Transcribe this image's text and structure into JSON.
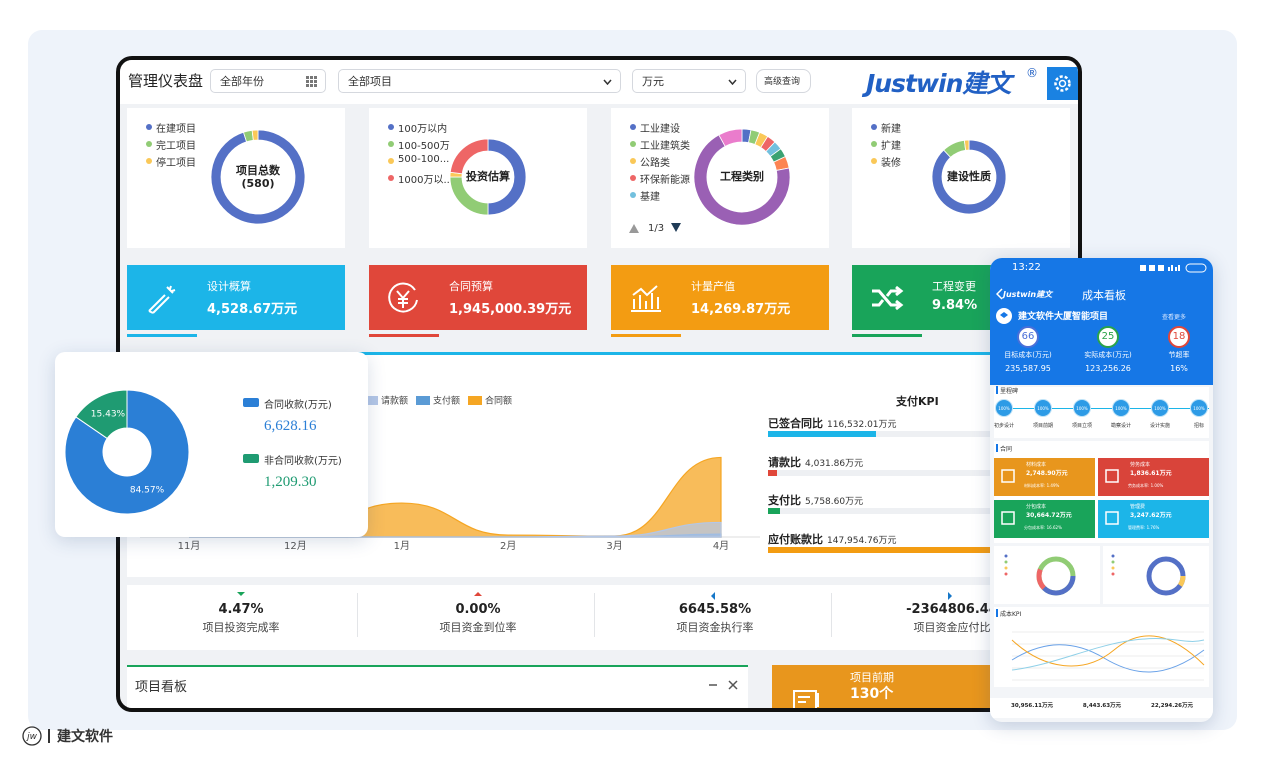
{
  "header": {
    "title": "管理仪表盘",
    "year_filter": "全部年份",
    "project_filter": "全部项目",
    "unit_filter": "万元",
    "advanced_query": "高级查询",
    "logo": "Justwin建文",
    "logo_mark": "®"
  },
  "summary_cards": [
    {
      "center_label": "项目总数",
      "center_value": "(580)",
      "legend": [
        "在建项目",
        "完工项目",
        "停工项目"
      ],
      "values": [
        95,
        3,
        2
      ],
      "colors": [
        "#5470c6",
        "#91cc75",
        "#fac858"
      ]
    },
    {
      "center_label": "投资估算",
      "legend": [
        "100万以内",
        "100-500万",
        "500-100...",
        "1000万以..."
      ],
      "values": [
        50,
        25,
        2,
        23
      ],
      "colors": [
        "#5470c6",
        "#91cc75",
        "#fac858",
        "#ee6666"
      ]
    },
    {
      "center_label": "工程类别",
      "legend": [
        "工业建设",
        "工业建筑类",
        "公路类",
        "环保新能源",
        "基建",
        null,
        null,
        null,
        null
      ],
      "values": [
        3,
        3,
        3,
        3,
        3,
        3,
        4,
        70,
        8
      ],
      "colors": [
        "#5470c6",
        "#91cc75",
        "#fac858",
        "#ee6666",
        "#73c0de",
        "#3ba272",
        "#fc8452",
        "#9a60b4",
        "#ea7ccc"
      ],
      "pager": "1/3"
    },
    {
      "center_label": "建设性质",
      "legend": [
        "新建",
        "扩建",
        "装修"
      ],
      "values": [
        88,
        10,
        2
      ],
      "colors": [
        "#5470c6",
        "#91cc75",
        "#fac858"
      ]
    }
  ],
  "kpi_tiles": [
    {
      "label": "设计概算",
      "value": "4,528.67万元",
      "color": "#1cb5e8"
    },
    {
      "label": "合同预算",
      "value": "1,945,000.39万元",
      "color": "#e0473a"
    },
    {
      "label": "计量产值",
      "value": "14,269.87万元",
      "color": "#f39c12"
    },
    {
      "label": "工程变更",
      "value": "9.84%",
      "color": "#19a45a"
    }
  ],
  "trend_chart": {
    "type": "area",
    "categories": [
      "11月",
      "12月",
      "1月",
      "2月",
      "3月",
      "4月"
    ],
    "series": [
      {
        "name": "请款额",
        "color": "#b4c7e7",
        "values": [
          0,
          0,
          0,
          0,
          1,
          15
        ]
      },
      {
        "name": "支付额",
        "color": "#5b9bd5",
        "values": [
          0,
          0,
          0,
          0,
          0,
          3
        ]
      },
      {
        "name": "合同额",
        "color": "#f5a623",
        "values": [
          0,
          6,
          35,
          2,
          1,
          82
        ]
      }
    ],
    "ylim": [
      0,
      100
    ]
  },
  "payment_kpi": {
    "title": "支付KPI",
    "items": [
      {
        "label": "已签合同比",
        "value": "116,532.01万元",
        "progress": 47,
        "color": "#1cb5e8"
      },
      {
        "label": "请款比",
        "value": "4,031.86万元",
        "progress": 4,
        "color": "#e0473a"
      },
      {
        "label": "支付比",
        "value": "5,758.60万元",
        "progress": 5,
        "color": "#19a45a"
      },
      {
        "label": "应付账款比",
        "value": "147,954.76万元",
        "progress": 100,
        "color": "#f39c12"
      }
    ]
  },
  "stats": [
    {
      "value": "4.47%",
      "label": "项目投资完成率",
      "arrow": "down",
      "color": "#19a45a"
    },
    {
      "value": "0.00%",
      "label": "项目资金到位率",
      "arrow": "up",
      "color": "#e0473a"
    },
    {
      "value": "6645.58%",
      "label": "项目资金执行率",
      "arrow": "left",
      "color": "#1677c8"
    },
    {
      "value": "-2364806.44",
      "label": "项目资金应付比",
      "arrow": "right",
      "color": "#1677c8"
    }
  ],
  "board": {
    "title": "项目看板"
  },
  "phase_card": {
    "title": "项目前期",
    "value": "130个"
  },
  "collection_pie": {
    "type": "pie",
    "categories": [
      "合同收款(万元)",
      "非合同收款(万元)"
    ],
    "values": [
      84.57,
      15.43
    ],
    "value_labels": [
      "84.57%",
      "15.43%"
    ],
    "amounts": [
      "6,628.16",
      "1,209.30"
    ],
    "colors": [
      "#2b7fd6",
      "#1f9b72"
    ]
  },
  "mobile": {
    "time": "13:22",
    "logo": "Justwin建文",
    "title": "成本看板",
    "project": "建文软件大厦智能项目",
    "more": "查看更多",
    "metrics": [
      {
        "number": "66",
        "label": "目标成本(万元)",
        "value": "235,587.95",
        "color": "#4a6fd8"
      },
      {
        "number": "25",
        "label": "实际成本(万元)",
        "value": "123,256.26",
        "color": "#2aa34a"
      },
      {
        "number": "18",
        "label": "节超率",
        "value": "16%",
        "color": "#e0473a"
      }
    ],
    "milestone_title": "里程碑",
    "milestones": [
      {
        "label": "初步设计",
        "progress": "100%"
      },
      {
        "label": "项目前期",
        "progress": "100%"
      },
      {
        "label": "项目立项",
        "progress": "100%"
      },
      {
        "label": "勘察设计",
        "progress": "100%"
      },
      {
        "label": "设计实施",
        "progress": "100%"
      },
      {
        "label": "招标",
        "progress": "100%"
      }
    ],
    "contract_title": "合同",
    "tiles": [
      {
        "title": "材料成本",
        "value": "2,748.90万元",
        "rate": "材料成本率: 1.49%",
        "color": "#e8961d"
      },
      {
        "title": "劳务成本",
        "value": "1,836.61万元",
        "rate": "劳务成本率: 1.00%",
        "color": "#d9443a"
      },
      {
        "title": "分包成本",
        "value": "30,664.72万元",
        "rate": "分包成本率: 16.62%",
        "color": "#19a45a"
      },
      {
        "title": "管理费",
        "value": "3,247.62万元",
        "rate": "管理费率: 1.76%",
        "color": "#1cb5e8"
      }
    ],
    "kpi_title": "成本KPI",
    "totals": [
      "30,956.11万元",
      "8,443.63万元",
      "22,294.26万元"
    ]
  },
  "footer": {
    "mark": "jw",
    "text": "建文软件"
  }
}
